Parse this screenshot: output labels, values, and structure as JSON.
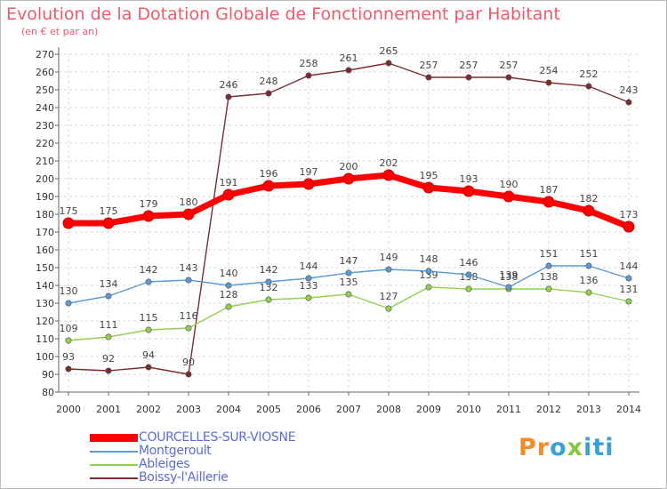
{
  "header": {
    "title": "Evolution de la Dotation Globale de Fonctionnement par Habitant",
    "subtitle": "(en € et par an)"
  },
  "logo": {
    "part1": "Pr",
    "part2": "o",
    "part3": "x",
    "part4": "iti"
  },
  "colors": {
    "title": "#ee5a6a",
    "grid": "#d9d9d9",
    "axis": "#666666",
    "courcelles": "#ff0000",
    "montgeroult": "#5b9bd5",
    "ableiges": "#92d050",
    "boissy": "#7b2d2d"
  },
  "chart_data": {
    "type": "line",
    "title": "Evolution de la Dotation Globale de Fonctionnement par Habitant",
    "ylabel": "(en € et par an)",
    "xlabel": "",
    "x": [
      "2000",
      "2001",
      "2002",
      "2003",
      "2004",
      "2005",
      "2006",
      "2007",
      "2008",
      "2009",
      "2010",
      "2011",
      "2012",
      "2013",
      "2014"
    ],
    "ylim": [
      80,
      270
    ],
    "yticks": [
      80,
      90,
      100,
      110,
      120,
      130,
      140,
      150,
      160,
      170,
      180,
      190,
      200,
      210,
      220,
      230,
      240,
      250,
      260,
      270
    ],
    "grid": true,
    "legend_position": "bottom-left",
    "series": [
      {
        "name": "COURCELLES-SUR-VIOSNE",
        "key": "courcelles",
        "values": [
          175,
          175,
          179,
          180,
          191,
          196,
          197,
          200,
          202,
          195,
          193,
          190,
          187,
          182,
          173
        ],
        "labels": [
          "175",
          "175",
          "179",
          "180",
          "191",
          "196",
          "197",
          "200",
          "202",
          "195",
          "193",
          "190",
          "187",
          "182",
          "173"
        ]
      },
      {
        "name": "Montgeroult",
        "key": "montgeroult",
        "values": [
          130,
          134,
          142,
          143,
          140,
          142,
          144,
          147,
          149,
          148,
          146,
          139,
          151,
          151,
          144
        ],
        "labels": [
          "130",
          "134",
          "142",
          "143",
          "140",
          "142",
          "144",
          "147",
          "149",
          "148",
          "146",
          "139",
          "151",
          "151",
          "144"
        ]
      },
      {
        "name": "Ableiges",
        "key": "ableiges",
        "values": [
          109,
          111,
          115,
          116,
          128,
          132,
          133,
          135,
          127,
          139,
          138,
          138,
          138,
          136,
          131
        ],
        "labels": [
          "109",
          "111",
          "115",
          "116",
          "128",
          "132",
          "133",
          "135",
          "127",
          "139",
          "138",
          "138",
          "138",
          "136",
          "131"
        ]
      },
      {
        "name": "Boissy-l'Aillerie",
        "key": "boissy",
        "values": [
          93,
          92,
          94,
          90,
          246,
          248,
          258,
          261,
          265,
          257,
          257,
          257,
          254,
          252,
          243
        ],
        "labels": [
          "93",
          "92",
          "94",
          "90",
          "246",
          "248",
          "258",
          "261",
          "265",
          "257",
          "257",
          "257",
          "254",
          "252",
          "243"
        ]
      }
    ]
  }
}
